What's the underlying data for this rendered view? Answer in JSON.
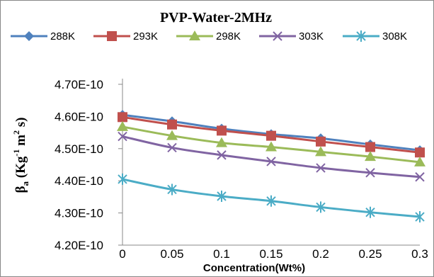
{
  "chart_data": {
    "type": "line",
    "title": "PVP-Water-2MHz",
    "xlabel": "Concentration(Wt%)",
    "ylabel": {
      "base": "β",
      "sub": "a",
      "unit_open": " (Kg",
      "exp1": "-1",
      "unit_mid": " m",
      "exp2": "2",
      "unit_close": " s)"
    },
    "x": [
      0,
      0.05,
      0.1,
      0.15,
      0.2,
      0.25,
      0.3
    ],
    "x_tick_labels": [
      "0",
      "0.05",
      "0.1",
      "0.15",
      "0.2",
      "0.25",
      "0.3"
    ],
    "y_ticks": [
      4.2e-10,
      4.3e-10,
      4.4e-10,
      4.5e-10,
      4.6e-10,
      4.7e-10
    ],
    "y_tick_labels": [
      "4.20E-10",
      "4.30E-10",
      "4.40E-10",
      "4.50E-10",
      "4.60E-10",
      "4.70E-10"
    ],
    "ylim": [
      4.2e-10,
      4.7e-10
    ],
    "grid": false,
    "legend_position": "top",
    "series": [
      {
        "name": "288K",
        "color": "#4F81BD",
        "marker": "diamond",
        "values": [
          4.605e-10,
          4.585e-10,
          4.562e-10,
          4.545e-10,
          4.532e-10,
          4.513e-10,
          4.495e-10
        ]
      },
      {
        "name": "293K",
        "color": "#C0504D",
        "marker": "square",
        "values": [
          4.598e-10,
          4.575e-10,
          4.556e-10,
          4.54e-10,
          4.522e-10,
          4.505e-10,
          4.488e-10
        ]
      },
      {
        "name": "298K",
        "color": "#9BBB59",
        "marker": "triangle",
        "values": [
          4.568e-10,
          4.54e-10,
          4.518e-10,
          4.505e-10,
          4.49e-10,
          4.475e-10,
          4.458e-10
        ]
      },
      {
        "name": "303K",
        "color": "#8064A2",
        "marker": "x",
        "values": [
          4.538e-10,
          4.503e-10,
          4.48e-10,
          4.46e-10,
          4.44e-10,
          4.425e-10,
          4.412e-10
        ]
      },
      {
        "name": "308K",
        "color": "#4BACC6",
        "marker": "star",
        "values": [
          4.405e-10,
          4.373e-10,
          4.352e-10,
          4.337e-10,
          4.318e-10,
          4.302e-10,
          4.288e-10
        ]
      }
    ]
  }
}
